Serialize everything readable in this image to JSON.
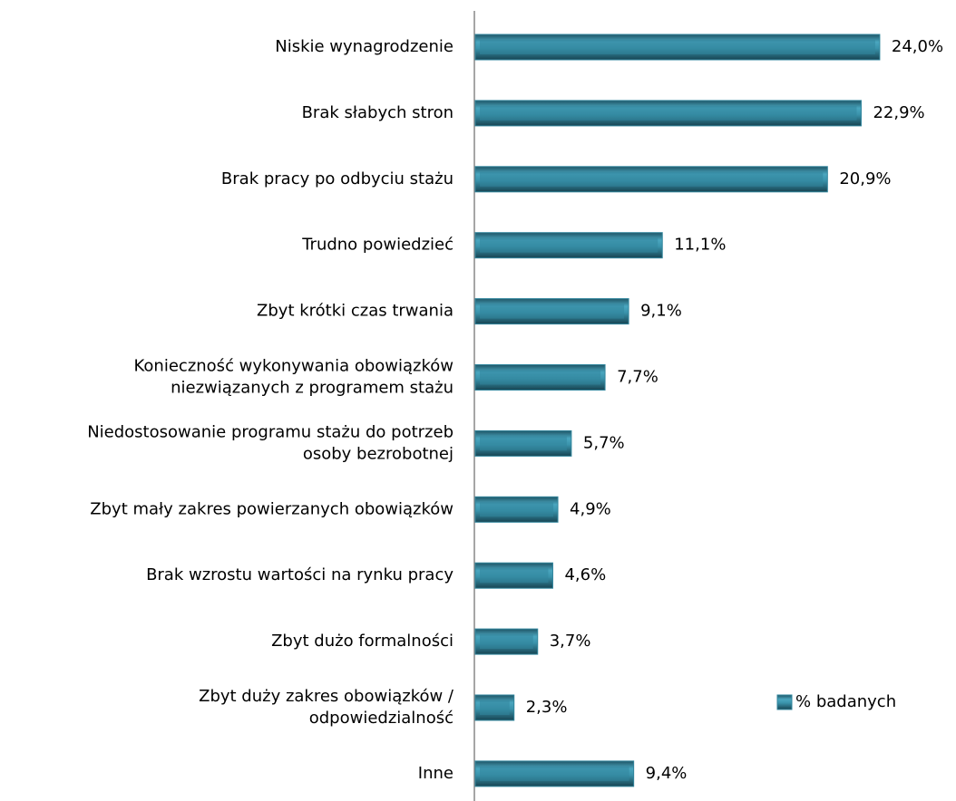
{
  "chart_data": {
    "type": "barh",
    "categories": [
      "Niskie wynagrodzenie",
      "Brak słabych stron",
      "Brak pracy po odbyciu stażu",
      "Trudno powiedzieć",
      "Zbyt krótki czas trwania",
      "Konieczność wykonywania obowiązków\nniezwiązanych z programem stażu",
      "Niedostosowanie programu stażu do potrzeb\nosoby bezrobotnej",
      "Zbyt mały zakres powierzanych obowiązków",
      "Brak wzrostu wartości na rynku pracy",
      "Zbyt dużo formalności",
      "Zbyt duży zakres obowiązków /\nodpowiedzialność",
      "Inne"
    ],
    "series": [
      {
        "name": "% badanych",
        "color": "#31859c",
        "values": [
          24.0,
          22.9,
          20.9,
          11.1,
          9.1,
          7.7,
          5.7,
          4.9,
          4.6,
          3.7,
          2.3,
          9.4
        ],
        "value_labels": [
          "24,0%",
          "22,9%",
          "20,9%",
          "11,1%",
          "9,1%",
          "7,7%",
          "5,7%",
          "4,9%",
          "4,6%",
          "3,7%",
          "2,3%",
          "9,4%"
        ]
      }
    ]
  }
}
